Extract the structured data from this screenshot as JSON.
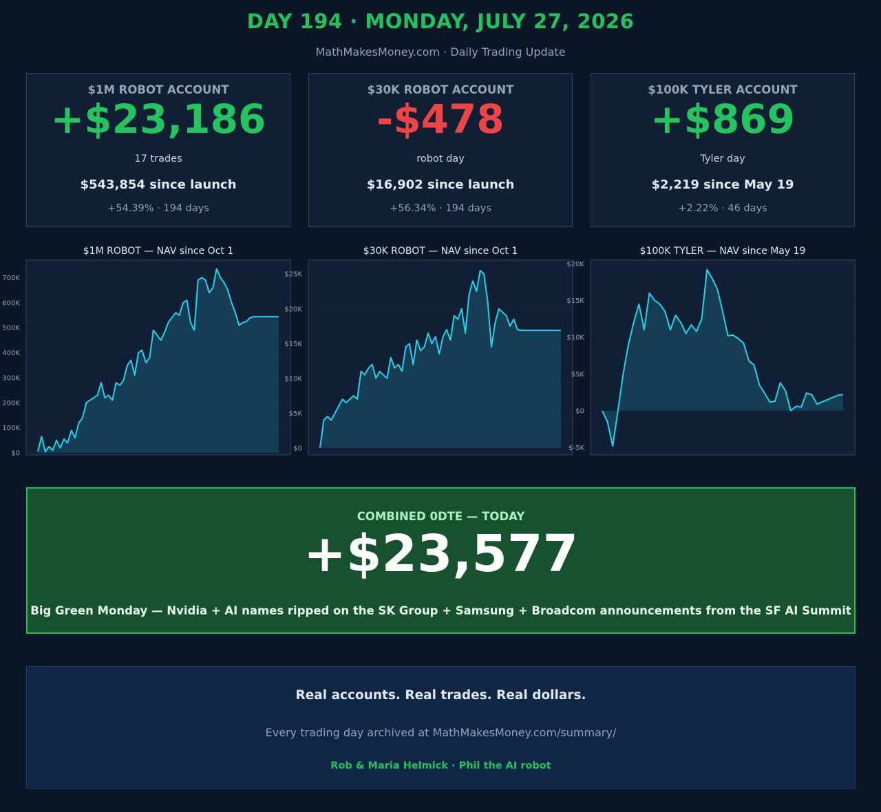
{
  "header": {
    "title": "DAY 194 · MONDAY, JULY 27, 2026",
    "subtitle": "MathMakesMoney.com  ·  Daily Trading Update"
  },
  "colors": {
    "gain": "#22c55e",
    "loss": "#ef4444",
    "line": "#22d3ee",
    "fill": "#164056",
    "panel": "#111f35",
    "panel_border": "#2a4368",
    "grid": "#16263d",
    "tick": "#8fa1ba"
  },
  "cards": [
    {
      "account": "$1M ROBOT ACCOUNT",
      "pnl": "+$23,186",
      "sentiment": "gain",
      "detail": "17 trades",
      "since": "$543,854 since launch",
      "pct": "+54.39% · 194 days"
    },
    {
      "account": "$30K ROBOT ACCOUNT",
      "pnl": "-$478",
      "sentiment": "loss",
      "detail": "robot day",
      "since": "$16,902 since launch",
      "pct": "+56.34% · 194 days"
    },
    {
      "account": "$100K TYLER ACCOUNT",
      "pnl": "+$869",
      "sentiment": "gain",
      "detail": "Tyler day",
      "since": "$2,219 since May 19",
      "pct": "+2.22% · 46 days"
    }
  ],
  "chart_titles": [
    "$1M ROBOT — NAV since Oct 1",
    "$30K ROBOT — NAV since Oct 1",
    "$100K TYLER — NAV since May 19"
  ],
  "chart_data": [
    {
      "type": "area",
      "title": "$1M ROBOT — NAV since Oct 1",
      "xlabel": "",
      "ylabel": "",
      "ylim": [
        -8000,
        770000
      ],
      "yticks": [
        0,
        100000,
        200000,
        300000,
        400000,
        500000,
        600000,
        700000
      ],
      "yticklabels": [
        "$0",
        "100K",
        "200K",
        "300K",
        "400K",
        "500K",
        "600K",
        "700K"
      ],
      "grid": true,
      "x": [
        0,
        3,
        6,
        9,
        12,
        15,
        18,
        21,
        24,
        27,
        30,
        33,
        36,
        39,
        42,
        45,
        48,
        51,
        54,
        57,
        60,
        63,
        66,
        69,
        72,
        75,
        78,
        81,
        84,
        87,
        90,
        93,
        96,
        99,
        102,
        105,
        108,
        111,
        114,
        117,
        120,
        123,
        126,
        129,
        132,
        135,
        138,
        141,
        144,
        147,
        150,
        153,
        156,
        159,
        162,
        165,
        168,
        171,
        174,
        177,
        180,
        183,
        186,
        189,
        192,
        194
      ],
      "values": [
        5000,
        65000,
        5000,
        25000,
        10000,
        50000,
        20000,
        55000,
        40000,
        90000,
        60000,
        120000,
        140000,
        200000,
        210000,
        220000,
        230000,
        280000,
        220000,
        230000,
        210000,
        280000,
        270000,
        290000,
        350000,
        370000,
        310000,
        400000,
        410000,
        360000,
        380000,
        490000,
        470000,
        450000,
        480000,
        520000,
        540000,
        560000,
        550000,
        600000,
        610000,
        520000,
        490000,
        690000,
        700000,
        690000,
        640000,
        660000,
        735000,
        700000,
        680000,
        650000,
        600000,
        560000,
        510000,
        520000,
        525000,
        540000,
        543854,
        543854,
        543854,
        543854,
        543854,
        543854,
        543854,
        543854
      ]
    },
    {
      "type": "area",
      "title": "$30K ROBOT — NAV since Oct 1",
      "xlabel": "",
      "ylabel": "",
      "ylim": [
        -1000,
        27000
      ],
      "yticks": [
        0,
        5000,
        10000,
        15000,
        20000,
        25000
      ],
      "yticklabels": [
        "$0",
        "$5K",
        "$10K",
        "$15K",
        "$20K",
        "$25K"
      ],
      "grid": true,
      "x": [
        0,
        3,
        6,
        9,
        12,
        15,
        18,
        21,
        24,
        27,
        30,
        33,
        36,
        39,
        42,
        45,
        48,
        51,
        54,
        57,
        60,
        63,
        66,
        69,
        72,
        75,
        78,
        81,
        84,
        87,
        90,
        93,
        96,
        99,
        102,
        105,
        108,
        111,
        114,
        117,
        120,
        123,
        126,
        129,
        132,
        135,
        138,
        141,
        144,
        147,
        150,
        153,
        156,
        159,
        162,
        165,
        168,
        171,
        174,
        177,
        180,
        183,
        186,
        189,
        192,
        194
      ],
      "values": [
        0,
        4000,
        4500,
        4000,
        5000,
        6000,
        7000,
        6500,
        7000,
        7500,
        7000,
        11000,
        10500,
        11500,
        12000,
        10000,
        11000,
        10500,
        10000,
        13000,
        11500,
        12000,
        11000,
        14500,
        15000,
        12000,
        15500,
        14000,
        14500,
        16500,
        15000,
        16000,
        13500,
        16000,
        17000,
        15500,
        19000,
        18500,
        20000,
        16500,
        22000,
        24000,
        22500,
        25500,
        25000,
        21000,
        14500,
        18000,
        20000,
        19500,
        19000,
        17500,
        18500,
        17000,
        16902,
        16902,
        16902,
        16902,
        16902,
        16902,
        16902,
        16902,
        16902,
        16902,
        16902,
        16902
      ]
    },
    {
      "type": "area",
      "title": "$100K TYLER — NAV since May 19",
      "xlabel": "",
      "ylabel": "",
      "ylim": [
        -6000,
        20500
      ],
      "yticks": [
        -5000,
        0,
        5000,
        10000,
        15000,
        20000
      ],
      "yticklabels": [
        "$-5K",
        "$0",
        "$5K",
        "$10K",
        "$15K",
        "$20K"
      ],
      "grid": true,
      "x": [
        0,
        1,
        2,
        3,
        4,
        5,
        6,
        7,
        8,
        9,
        10,
        11,
        12,
        13,
        14,
        15,
        16,
        17,
        18,
        19,
        20,
        21,
        22,
        23,
        24,
        25,
        26,
        27,
        28,
        29,
        30,
        31,
        32,
        33,
        34,
        35,
        36,
        37,
        38,
        39,
        40,
        41,
        42,
        43,
        44,
        45,
        46
      ],
      "values": [
        0,
        -1500,
        -4800,
        0,
        5000,
        9000,
        12000,
        14500,
        11000,
        16000,
        15000,
        14500,
        13500,
        11000,
        13000,
        12000,
        10500,
        11700,
        10800,
        12500,
        19200,
        18000,
        16500,
        13500,
        10200,
        10300,
        9800,
        9200,
        6800,
        6200,
        3500,
        2400,
        1200,
        1300,
        3800,
        2700,
        0,
        600,
        500,
        2400,
        2200,
        900,
        1200,
        1500,
        1800,
        2100,
        2219
      ]
    }
  ],
  "combined": {
    "label": "COMBINED 0DTE — TODAY",
    "value": "+$23,577",
    "note": "Big Green Monday — Nvidia + AI names ripped on the SK Group + Samsung + Broadcom announcements from the SF AI Summit"
  },
  "footer": {
    "tagline": "Real accounts. Real trades. Real dollars.",
    "archive": "Every trading day archived at MathMakesMoney.com/summary/",
    "credits": "Rob & Maria Helmick  ·  Phil the AI robot"
  }
}
